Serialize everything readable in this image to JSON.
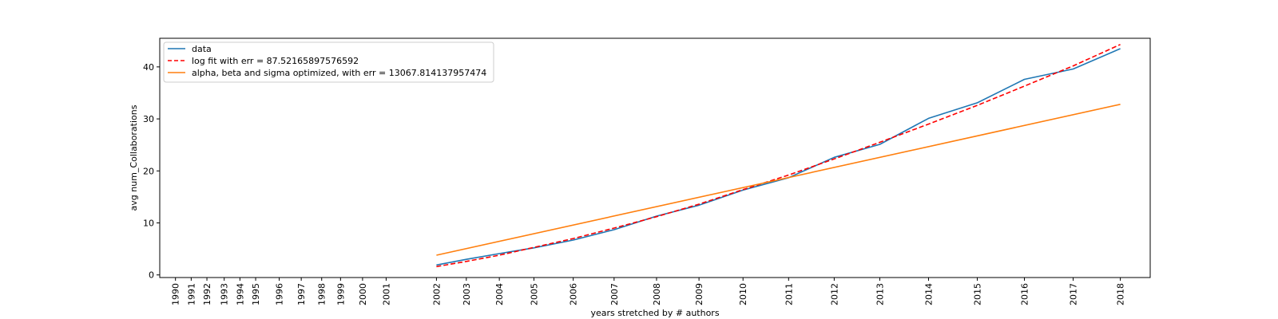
{
  "chart_data": {
    "type": "line",
    "title": "",
    "xlabel": "years stretched by # authors",
    "ylabel": "avg num_Collaborations",
    "ylim": [
      -0.5,
      45.5
    ],
    "yticks": [
      0,
      10,
      20,
      30,
      40
    ],
    "grid": false,
    "legend_position": "top-left",
    "x_tick_labels": [
      "1990",
      "1991",
      "1992",
      "1993",
      "1994",
      "1995",
      "1996",
      "1997",
      "1998",
      "1999",
      "2000",
      "2001",
      "2002",
      "2003",
      "2004",
      "2005",
      "2006",
      "2007",
      "2008",
      "2009",
      "2010",
      "2011",
      "2012",
      "2013",
      "2014",
      "2015",
      "2016",
      "2017",
      "2018"
    ],
    "x_tick_positions": [
      0,
      1,
      2,
      3.1,
      4.1,
      5.1,
      6.6,
      8,
      9.3,
      10.5,
      11.9,
      13.4,
      16.6,
      18.5,
      20.6,
      22.8,
      25.3,
      27.9,
      30.6,
      33.3,
      36.1,
      39.0,
      41.9,
      44.8,
      47.9,
      51.0,
      54.0,
      57.1,
      60.1
    ],
    "xlim": [
      -1,
      62
    ],
    "series": [
      {
        "name": "data",
        "color": "#1f77b4",
        "style": "solid",
        "x": [
          16.6,
          18.5,
          20.6,
          22.8,
          25.3,
          27.9,
          30.6,
          33.3,
          36.1,
          39.0,
          41.9,
          44.8,
          47.9,
          51.0,
          54.0,
          57.1,
          60.1
        ],
        "y": [
          1.9,
          3.0,
          4.1,
          5.2,
          6.7,
          8.7,
          11.3,
          13.4,
          16.3,
          18.7,
          22.6,
          25.1,
          30.1,
          33.1,
          37.6,
          39.6,
          43.5
        ]
      },
      {
        "name": "log fit with err = 87.52165897576592",
        "color": "#ff0000",
        "style": "dashed",
        "x": [
          16.6,
          18.5,
          20.6,
          22.8,
          25.3,
          27.9,
          30.6,
          33.3,
          36.1,
          39.0,
          41.9,
          44.8,
          47.9,
          51.0,
          54.0,
          57.1,
          60.1
        ],
        "y": [
          1.6,
          2.6,
          3.8,
          5.3,
          7.0,
          9.0,
          11.2,
          13.6,
          16.4,
          19.2,
          22.3,
          25.5,
          29.0,
          32.6,
          36.3,
          40.2,
          44.3
        ]
      },
      {
        "name": "alpha, beta and sigma optimized, with err = 13067.814137957474",
        "color": "#ff7f0e",
        "style": "solid",
        "x": [
          16.6,
          60.1
        ],
        "y": [
          3.8,
          32.8
        ]
      }
    ]
  }
}
